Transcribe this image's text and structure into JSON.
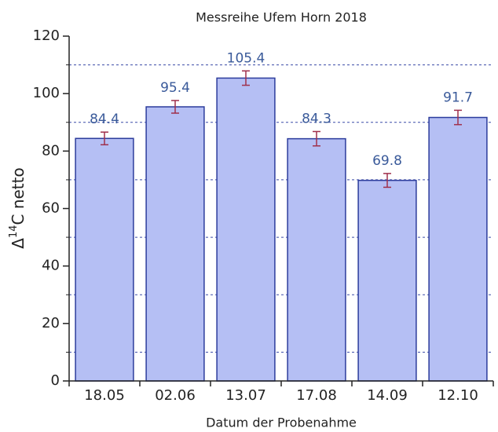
{
  "chart_data": {
    "type": "bar",
    "title": "Messreihe Ufem Horn 2018",
    "x_label": "Datum der Probenahme",
    "y_label": {
      "prefix": "Δ",
      "sup": "14",
      "suffix": "C netto"
    },
    "categories": [
      "18.05",
      "02.06",
      "13.07",
      "17.08",
      "14.09",
      "12.10"
    ],
    "values": [
      84.4,
      95.4,
      105.4,
      84.3,
      69.8,
      91.7
    ],
    "errors": [
      2.2,
      2.2,
      2.5,
      2.5,
      2.4,
      2.5
    ],
    "color": "#b5bff4",
    "edge_color": "#2c3c9c",
    "error_color": "#a0304c",
    "label_color": "#3a5a9a",
    "ylim": [
      0,
      120
    ],
    "yticks": [
      0,
      20,
      40,
      60,
      80,
      100,
      120
    ],
    "minor_yticks": [
      10,
      30,
      50,
      70,
      90,
      110
    ],
    "grid": true
  }
}
